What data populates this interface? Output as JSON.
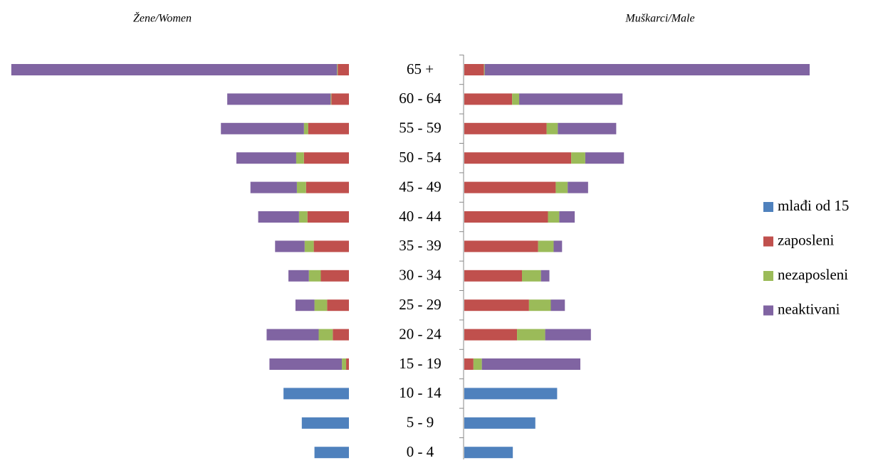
{
  "chart_data": [
    {
      "type": "bar",
      "title": "Žene/Women",
      "categories": [
        "0 - 4",
        "5 - 9",
        "10 - 14",
        "15 - 19",
        "20 - 24",
        "25 - 29",
        "30 - 34",
        "35 - 39",
        "40 - 44",
        "45 - 49",
        "50 - 54",
        "55 - 59",
        "60 - 64",
        "65 +"
      ],
      "series": [
        {
          "name": "mlađi od 15",
          "color": "#4f81bd",
          "values": [
            49,
            67,
            93,
            null,
            null,
            null,
            null,
            null,
            null,
            null,
            null,
            null,
            null,
            null
          ]
        },
        {
          "name": "zaposleni",
          "color": "#c0504d",
          "values": [
            null,
            null,
            null,
            4,
            23,
            31,
            40,
            50,
            59,
            61,
            64,
            58,
            25,
            16
          ]
        },
        {
          "name": "nezaposleni",
          "color": "#9bbb59",
          "values": [
            null,
            null,
            null,
            6,
            20,
            18,
            17,
            13,
            12,
            13,
            11,
            6,
            1,
            1
          ]
        },
        {
          "name": "neaktivani",
          "color": "#8064a2",
          "values": [
            null,
            null,
            null,
            103,
            74,
            27,
            29,
            42,
            58,
            66,
            85,
            118,
            147,
            463
          ]
        }
      ]
    },
    {
      "type": "bar",
      "title": "Muškarci/Male",
      "series": [
        {
          "values": [
            69,
            101,
            132,
            null,
            null,
            null,
            null,
            null,
            null,
            null,
            null,
            null,
            null,
            null
          ]
        },
        {
          "values": [
            null,
            null,
            null,
            13,
            75,
            92,
            82,
            105,
            119,
            130,
            152,
            117,
            68,
            28
          ]
        },
        {
          "values": [
            null,
            null,
            null,
            12,
            40,
            31,
            27,
            22,
            16,
            17,
            20,
            16,
            10,
            1
          ]
        },
        {
          "values": [
            null,
            null,
            null,
            140,
            65,
            20,
            12,
            12,
            22,
            29,
            55,
            83,
            147,
            462
          ]
        }
      ]
    }
  ]
}
